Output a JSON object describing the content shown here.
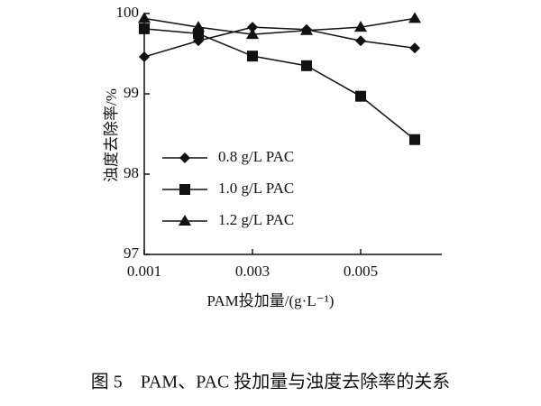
{
  "chart_data": {
    "type": "line",
    "x_label": "PAM投加量/(g·L⁻¹)",
    "y_label": "浊度去除率/%",
    "caption": "图 5　PAM、PAC 投加量与浊度去除率的关系",
    "x": [
      0.001,
      0.002,
      0.003,
      0.004,
      0.005,
      0.006
    ],
    "xlim": [
      0.001,
      0.0065
    ],
    "xticks": [
      0.001,
      0.003,
      0.005
    ],
    "ylim": [
      97,
      100
    ],
    "yticks": [
      97,
      98,
      99,
      100
    ],
    "series": [
      {
        "name": "0.8 g/L PAC",
        "color": "#111111",
        "marker": "diamond",
        "values": [
          99.46,
          99.66,
          99.83,
          99.8,
          99.66,
          99.57
        ]
      },
      {
        "name": "1.0 g/L PAC",
        "color": "#111111",
        "marker": "square",
        "values": [
          99.81,
          99.75,
          99.47,
          99.35,
          98.97,
          98.43
        ]
      },
      {
        "name": "1.2 g/L PAC",
        "color": "#111111",
        "marker": "triangle",
        "values": [
          99.94,
          99.83,
          99.74,
          99.79,
          99.83,
          99.94
        ]
      }
    ]
  }
}
